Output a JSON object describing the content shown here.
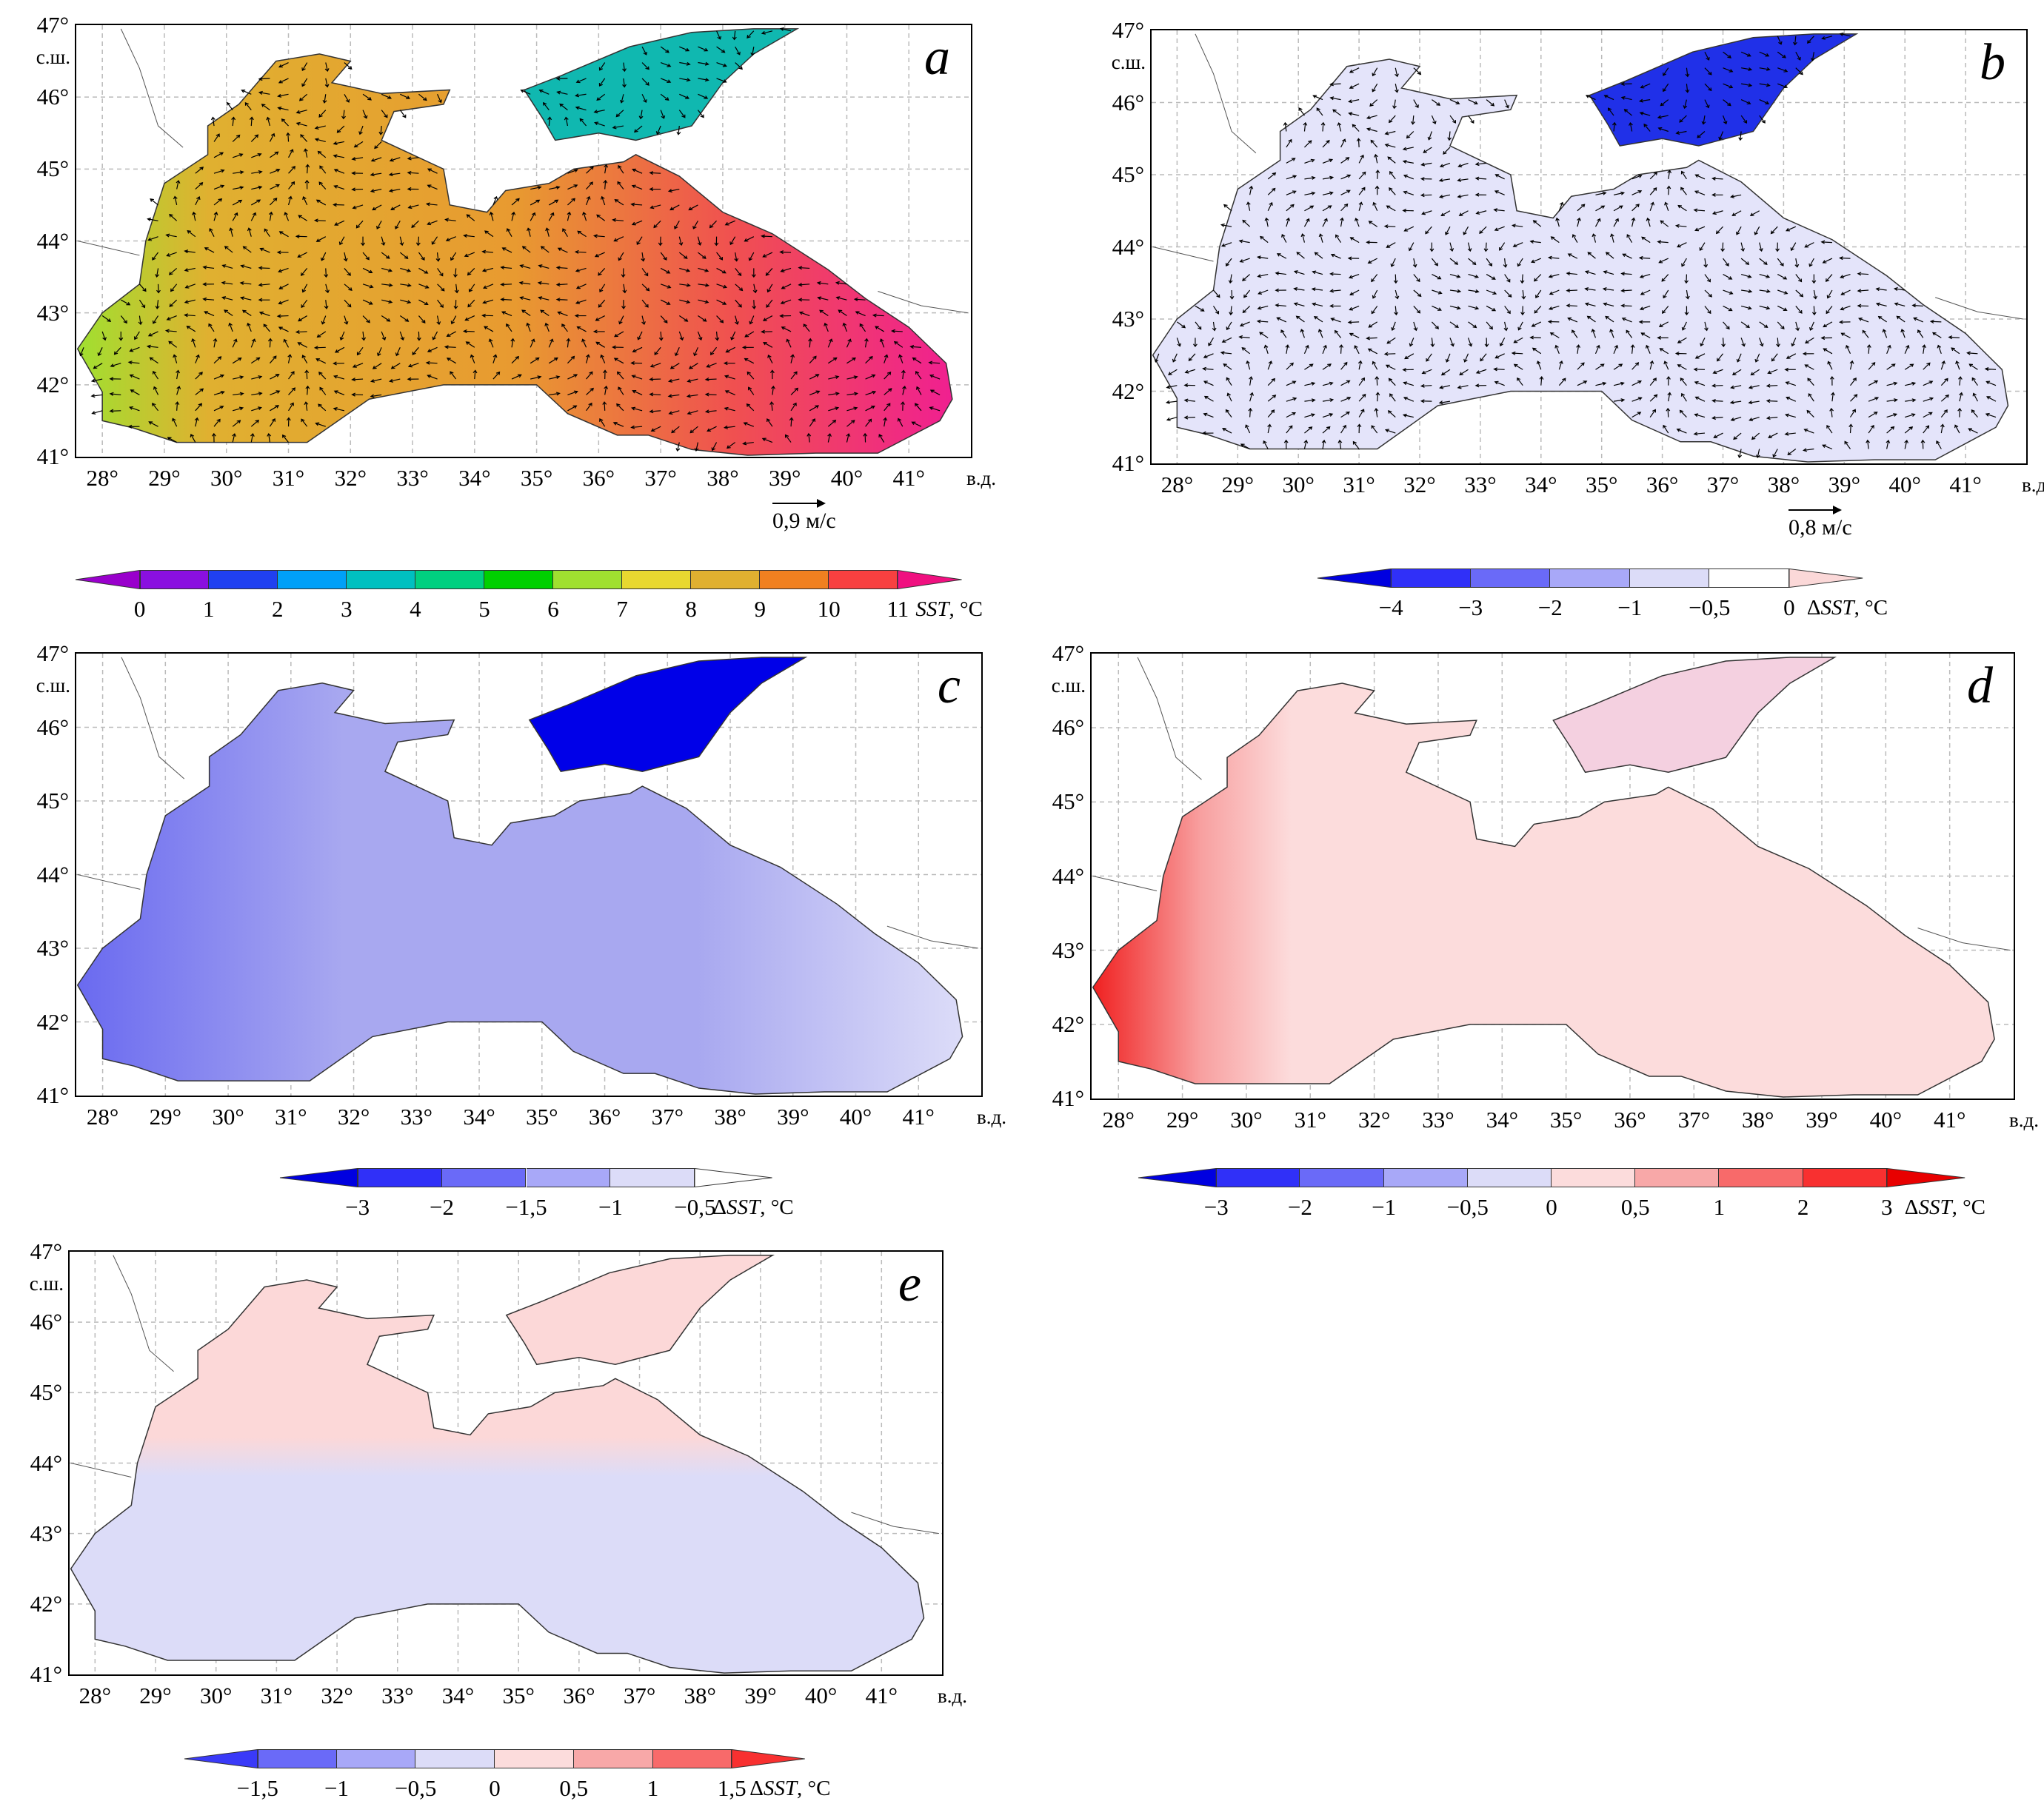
{
  "common": {
    "lon_ticks": [
      "28°",
      "29°",
      "30°",
      "31°",
      "32°",
      "33°",
      "34°",
      "35°",
      "36°",
      "37°",
      "38°",
      "39°",
      "40°",
      "41°"
    ],
    "lat_ticks": [
      "41°",
      "42°",
      "43°",
      "44°",
      "45°",
      "46°",
      "47°"
    ],
    "lon_unit": "в.д.",
    "lat_unit": "с.ш."
  },
  "panels": [
    {
      "id": "a",
      "letter": "a",
      "velocity_scale": "0,9 м/с",
      "vectors": true,
      "colorbar": {
        "title_prefix": "",
        "title_var": "SST",
        "title_unit": ", °C",
        "labels": [
          "0",
          "1",
          "2",
          "3",
          "4",
          "5",
          "6",
          "7",
          "8",
          "9",
          "10",
          "11"
        ],
        "colors": [
          "#8a10e0",
          "#2040f0",
          "#00a0f8",
          "#00c0c0",
          "#00d080",
          "#00d000",
          "#a0e030",
          "#e8d830",
          "#e0b030",
          "#f08020",
          "#f84040"
        ],
        "under": "#9900cc",
        "over": "#f01080"
      }
    },
    {
      "id": "b",
      "letter": "b",
      "velocity_scale": "0,8 м/с",
      "vectors": true,
      "colorbar": {
        "title_prefix": "Δ",
        "title_var": "SST",
        "title_unit": ", °C",
        "labels": [
          "−4",
          "−3",
          "−2",
          "−1",
          "−0,5",
          "0"
        ],
        "colors": [
          "#3030f8",
          "#6a6af8",
          "#a8a8f8",
          "#dcdcf8",
          "#ffffff"
        ],
        "under": "#0000e0",
        "over": "#fbd8d8"
      }
    },
    {
      "id": "c",
      "letter": "c",
      "vectors": false,
      "colorbar": {
        "title_prefix": "Δ",
        "title_var": "SST",
        "title_unit": ", °C",
        "labels": [
          "−3",
          "−2",
          "−1,5",
          "−1",
          "−0,5"
        ],
        "colors": [
          "#3030f8",
          "#6a6af8",
          "#a8a8f8",
          "#dcdcf8"
        ],
        "under": "#0000e0",
        "over": "#ffffff"
      }
    },
    {
      "id": "d",
      "letter": "d",
      "vectors": false,
      "colorbar": {
        "title_prefix": "Δ",
        "title_var": "SST",
        "title_unit": ", °C",
        "labels": [
          "−3",
          "−2",
          "−1",
          "−0,5",
          "0",
          "0,5",
          "1",
          "2",
          "3"
        ],
        "colors": [
          "#3030f8",
          "#6a6af8",
          "#a8a8f8",
          "#dcdcf8",
          "#fcdcdc",
          "#f8a8a8",
          "#f86a6a",
          "#f83030"
        ],
        "under": "#0000e0",
        "over": "#e80000"
      }
    },
    {
      "id": "e",
      "letter": "e",
      "vectors": false,
      "colorbar": {
        "title_prefix": "Δ",
        "title_var": "SST",
        "title_unit": ", °C",
        "labels": [
          "−1,5",
          "−1",
          "−0,5",
          "0",
          "0,5",
          "1",
          "1,5"
        ],
        "colors": [
          "#6a6af8",
          "#a8a8f8",
          "#dcdcf8",
          "#fcdcdc",
          "#f8a8a8",
          "#f86a6a"
        ],
        "under": "#3a3af8",
        "over": "#f83030"
      }
    }
  ],
  "colors": {
    "a_sea_west": "#e0b030",
    "a_sea_mid": "#e89a30",
    "a_sea_east": "#f02090",
    "a_azov": "#10b8b0",
    "a_nw": "#a0e030",
    "b_sea": "#e4e4fa",
    "b_azov": "#2030e8",
    "c_sea": "#a8a8f0",
    "c_azov": "#0000e8",
    "c_south": "#dcdcf8",
    "d_sea": "#fcdcdc",
    "d_west": "#f02020",
    "e_sea": "#dcdcf8",
    "e_north": "#fcd8d8"
  }
}
